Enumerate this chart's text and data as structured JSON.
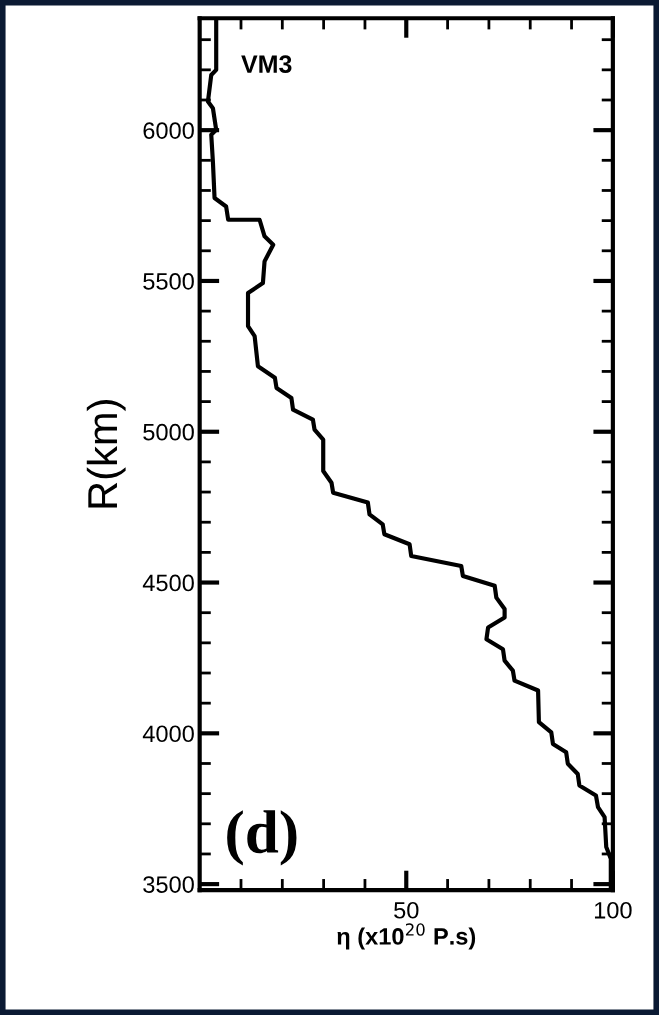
{
  "chart_data": {
    "type": "line",
    "xlabel": "η (x10$^{20}$ P.s)",
    "ylabel": "R(km)",
    "annotations": [
      "VM3",
      "(d)"
    ],
    "x": [
      4.0,
      4.0,
      2.8,
      2.0,
      3.2,
      4.0,
      2.8,
      3.2,
      3.6,
      6.4,
      6.9,
      14.5,
      15.7,
      17.8,
      15.7,
      15.3,
      11.7,
      11.7,
      13.3,
      14.1,
      18.2,
      18.6,
      22.2,
      22.6,
      27.4,
      27.8,
      29.9,
      29.9,
      31.9,
      32.3,
      40.7,
      41.1,
      44.3,
      44.7,
      50.8,
      51.2,
      63.3,
      63.7,
      71.4,
      71.8,
      73.8,
      73.8,
      69.8,
      69.4,
      73.4,
      73.8,
      75.8,
      76.2,
      81.9,
      82.1,
      85.1,
      85.5,
      88.7,
      89.1,
      91.5,
      91.9,
      95.9,
      96.4,
      98.0,
      98.4,
      99.5,
      99.5
    ],
    "series": [
      {
        "color": "#000000",
        "values": [
          6371,
          6200,
          6183,
          6095,
          6073,
          6001,
          5985,
          5896,
          5775,
          5747,
          5703,
          5703,
          5648,
          5620,
          5565,
          5493,
          5460,
          5350,
          5317,
          5217,
          5179,
          5145,
          5112,
          5073,
          5040,
          5007,
          4974,
          4870,
          4831,
          4798,
          4765,
          4726,
          4693,
          4660,
          4627,
          4588,
          4555,
          4522,
          4489,
          4450,
          4412,
          4384,
          4351,
          4312,
          4279,
          4241,
          4208,
          4175,
          4142,
          4037,
          4003,
          3965,
          3937,
          3899,
          3865,
          3827,
          3794,
          3755,
          3722,
          3623,
          3584,
          3490
        ]
      }
    ],
    "xlim": [
      0,
      100
    ],
    "ylim": [
      3480,
      6371
    ],
    "xticks": [
      {
        "value": 10,
        "label": null
      },
      {
        "value": 20,
        "label": null
      },
      {
        "value": 30,
        "label": null
      },
      {
        "value": 40,
        "label": null
      },
      50,
      {
        "value": 60,
        "label": null
      },
      {
        "value": 70,
        "label": null
      },
      {
        "value": 80,
        "label": null
      },
      {
        "value": 90,
        "label": null
      },
      100
    ],
    "yticks": [
      3500,
      {
        "value": 3600,
        "label": null
      },
      {
        "value": 3700,
        "label": null
      },
      {
        "value": 3800,
        "label": null
      },
      {
        "value": 3900,
        "label": null
      },
      4000,
      {
        "value": 4100,
        "label": null
      },
      {
        "value": 4200,
        "label": null
      },
      {
        "value": 4300,
        "label": null
      },
      {
        "value": 4400,
        "label": null
      },
      4500,
      {
        "value": 4600,
        "label": null
      },
      {
        "value": 4700,
        "label": null
      },
      {
        "value": 4800,
        "label": null
      },
      {
        "value": 4900,
        "label": null
      },
      5000,
      {
        "value": 5100,
        "label": null
      },
      {
        "value": 5200,
        "label": null
      },
      {
        "value": 5300,
        "label": null
      },
      {
        "value": 5400,
        "label": null
      },
      5500,
      {
        "value": 5600,
        "label": null
      },
      {
        "value": 5700,
        "label": null
      },
      {
        "value": 5800,
        "label": null
      },
      {
        "value": 5900,
        "label": null
      },
      6000,
      {
        "value": 6100,
        "label": null
      },
      {
        "value": 6200,
        "label": null
      },
      {
        "value": 6300,
        "label": null
      }
    ],
    "grid": false,
    "legend": false,
    "marker": "none",
    "line_style": "solid"
  }
}
